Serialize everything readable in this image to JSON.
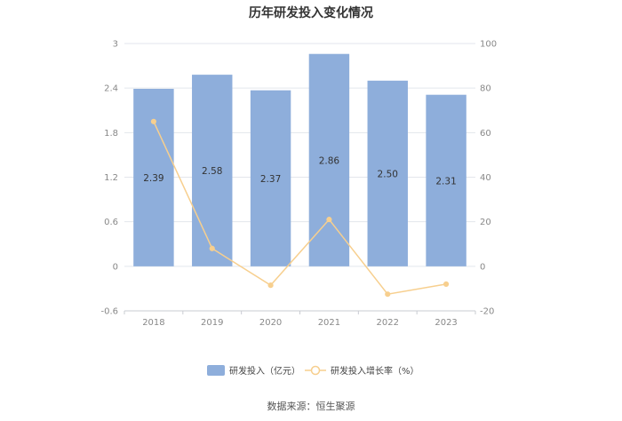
{
  "chart_data": {
    "type": "bar",
    "title": "历年研发投入变化情况",
    "categories": [
      "2018",
      "2019",
      "2020",
      "2021",
      "2022",
      "2023"
    ],
    "series": [
      {
        "name": "研发投入（亿元）",
        "type": "bar",
        "axis": "left",
        "values": [
          2.39,
          2.58,
          2.37,
          2.86,
          2.5,
          2.31
        ],
        "color": "#8eaedb"
      },
      {
        "name": "研发投入增长率（%）",
        "type": "line",
        "axis": "right",
        "values": [
          65,
          8,
          -8.5,
          21,
          -12.5,
          -8
        ],
        "color": "#f7cf8e"
      }
    ],
    "y_left": {
      "min": -0.6,
      "max": 3,
      "ticks": [
        "-0.6",
        "0",
        "0.6",
        "1.2",
        "1.8",
        "2.4",
        "3"
      ]
    },
    "y_right": {
      "min": -20,
      "max": 100,
      "ticks": [
        "-20",
        "0",
        "20",
        "40",
        "60",
        "80",
        "100"
      ]
    },
    "grid": true,
    "legend_position": "bottom"
  },
  "source": "数据来源：恒生聚源"
}
